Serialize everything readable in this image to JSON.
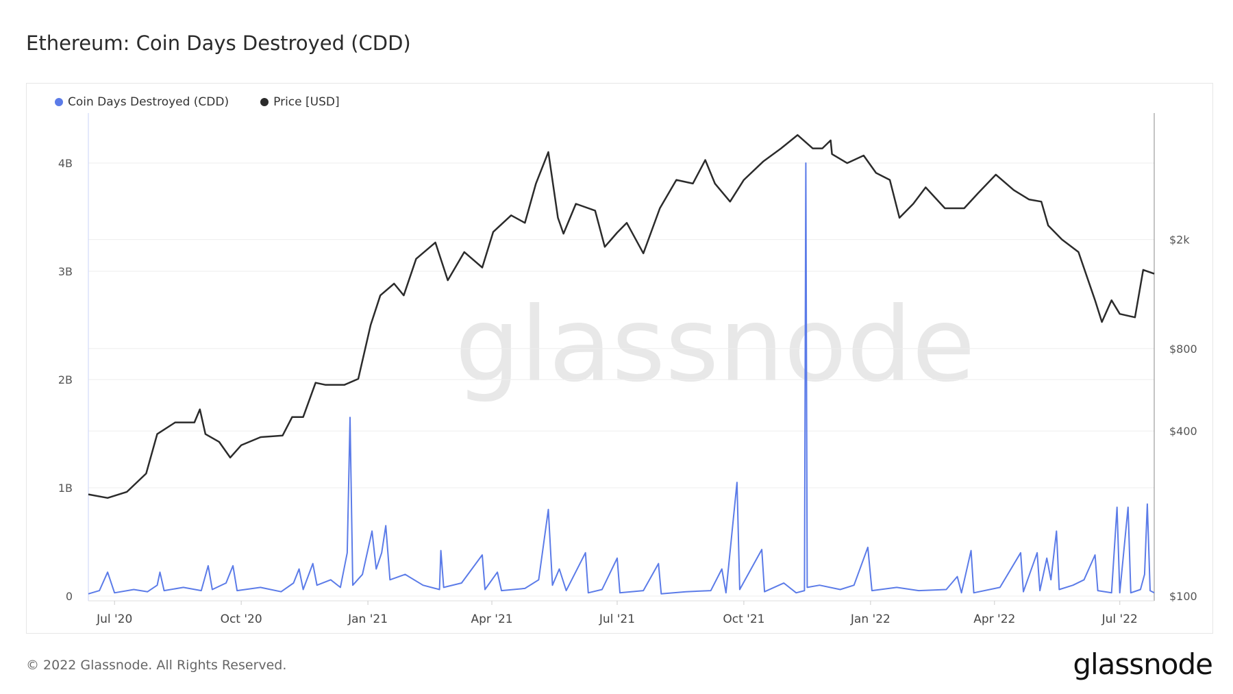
{
  "title": "Ethereum: Coin Days Destroyed (CDD)",
  "footer": "© 2022 Glassnode. All Rights Reserved.",
  "logo": "glassnode",
  "watermark": "glassnode",
  "chart_data": {
    "type": "line",
    "title": "Ethereum: Coin Days Destroyed (CDD)",
    "legend_position": "top-left",
    "grid": true,
    "x_ticks": [
      {
        "date": "2020-07-01",
        "label": "Jul '20"
      },
      {
        "date": "2020-10-01",
        "label": "Oct '20"
      },
      {
        "date": "2021-01-01",
        "label": "Jan '21"
      },
      {
        "date": "2021-04-01",
        "label": "Apr '21"
      },
      {
        "date": "2021-07-01",
        "label": "Jul '21"
      },
      {
        "date": "2021-10-01",
        "label": "Oct '21"
      },
      {
        "date": "2022-01-01",
        "label": "Jan '22"
      },
      {
        "date": "2022-04-01",
        "label": "Apr '22"
      },
      {
        "date": "2022-07-01",
        "label": "Jul '22"
      }
    ],
    "xlim": [
      "2020-06-12",
      "2022-07-26"
    ],
    "left_axis": {
      "scale": "linear",
      "ylim": [
        0,
        4500000000
      ],
      "ticks": [
        {
          "v": 0,
          "label": "0"
        },
        {
          "v": 1000000000,
          "label": "1B"
        },
        {
          "v": 2000000000,
          "label": "2B"
        },
        {
          "v": 3000000000,
          "label": "3B"
        },
        {
          "v": 4000000000,
          "label": "4B"
        }
      ]
    },
    "right_axis": {
      "scale": "log",
      "ticks": [
        {
          "v": 100,
          "label": "$100"
        },
        {
          "v": 400,
          "label": "$400"
        },
        {
          "v": 800,
          "label": "$800"
        },
        {
          "v": 2000,
          "label": "$2k"
        }
      ]
    },
    "series": [
      {
        "name": "Coin Days Destroyed (CDD)",
        "axis": "left",
        "color": "#5b7be8",
        "points": [
          [
            "2020-06-12",
            20000000.0
          ],
          [
            "2020-06-20",
            50000000.0
          ],
          [
            "2020-06-26",
            220000000.0
          ],
          [
            "2020-07-01",
            30000000.0
          ],
          [
            "2020-07-15",
            60000000.0
          ],
          [
            "2020-07-25",
            40000000.0
          ],
          [
            "2020-08-01",
            100000000.0
          ],
          [
            "2020-08-03",
            220000000.0
          ],
          [
            "2020-08-06",
            50000000.0
          ],
          [
            "2020-08-20",
            80000000.0
          ],
          [
            "2020-09-02",
            50000000.0
          ],
          [
            "2020-09-07",
            280000000.0
          ],
          [
            "2020-09-10",
            60000000.0
          ],
          [
            "2020-09-20",
            120000000.0
          ],
          [
            "2020-09-25",
            280000000.0
          ],
          [
            "2020-09-28",
            50000000.0
          ],
          [
            "2020-10-15",
            80000000.0
          ],
          [
            "2020-10-30",
            40000000.0
          ],
          [
            "2020-11-08",
            120000000.0
          ],
          [
            "2020-11-12",
            250000000.0
          ],
          [
            "2020-11-15",
            60000000.0
          ],
          [
            "2020-11-22",
            300000000.0
          ],
          [
            "2020-11-25",
            100000000.0
          ],
          [
            "2020-12-05",
            150000000.0
          ],
          [
            "2020-12-12",
            80000000.0
          ],
          [
            "2020-12-17",
            400000000.0
          ],
          [
            "2020-12-19",
            1650000000.0
          ],
          [
            "2020-12-21",
            100000000.0
          ],
          [
            "2020-12-28",
            200000000.0
          ],
          [
            "2021-01-04",
            600000000.0
          ],
          [
            "2021-01-07",
            250000000.0
          ],
          [
            "2021-01-11",
            400000000.0
          ],
          [
            "2021-01-14",
            650000000.0
          ],
          [
            "2021-01-17",
            150000000.0
          ],
          [
            "2021-01-28",
            200000000.0
          ],
          [
            "2021-02-10",
            100000000.0
          ],
          [
            "2021-02-22",
            60000000.0
          ],
          [
            "2021-02-23",
            420000000.0
          ],
          [
            "2021-02-25",
            80000000.0
          ],
          [
            "2021-03-10",
            120000000.0
          ],
          [
            "2021-03-25",
            380000000.0
          ],
          [
            "2021-03-27",
            60000000.0
          ],
          [
            "2021-04-05",
            220000000.0
          ],
          [
            "2021-04-08",
            50000000.0
          ],
          [
            "2021-04-25",
            70000000.0
          ],
          [
            "2021-05-05",
            150000000.0
          ],
          [
            "2021-05-12",
            800000000.0
          ],
          [
            "2021-05-15",
            100000000.0
          ],
          [
            "2021-05-20",
            250000000.0
          ],
          [
            "2021-05-25",
            50000000.0
          ],
          [
            "2021-06-08",
            400000000.0
          ],
          [
            "2021-06-10",
            30000000.0
          ],
          [
            "2021-06-20",
            60000000.0
          ],
          [
            "2021-07-01",
            350000000.0
          ],
          [
            "2021-07-03",
            30000000.0
          ],
          [
            "2021-07-20",
            50000000.0
          ],
          [
            "2021-07-31",
            300000000.0
          ],
          [
            "2021-08-02",
            20000000.0
          ],
          [
            "2021-08-20",
            40000000.0
          ],
          [
            "2021-09-07",
            50000000.0
          ],
          [
            "2021-09-15",
            250000000.0
          ],
          [
            "2021-09-18",
            30000000.0
          ],
          [
            "2021-09-26",
            1050000000.0
          ],
          [
            "2021-09-28",
            60000000.0
          ],
          [
            "2021-10-14",
            430000000.0
          ],
          [
            "2021-10-16",
            40000000.0
          ],
          [
            "2021-10-30",
            120000000.0
          ],
          [
            "2021-11-08",
            30000000.0
          ],
          [
            "2021-11-14",
            50000000.0
          ],
          [
            "2021-11-15",
            4000000000.0
          ],
          [
            "2021-11-16",
            80000000.0
          ],
          [
            "2021-11-25",
            100000000.0
          ],
          [
            "2021-12-10",
            60000000.0
          ],
          [
            "2021-12-20",
            100000000.0
          ],
          [
            "2021-12-30",
            450000000.0
          ],
          [
            "2022-01-02",
            50000000.0
          ],
          [
            "2022-01-20",
            80000000.0
          ],
          [
            "2022-02-05",
            50000000.0
          ],
          [
            "2022-02-25",
            60000000.0
          ],
          [
            "2022-03-05",
            180000000.0
          ],
          [
            "2022-03-08",
            30000000.0
          ],
          [
            "2022-03-15",
            420000000.0
          ],
          [
            "2022-03-17",
            30000000.0
          ],
          [
            "2022-04-05",
            80000000.0
          ],
          [
            "2022-04-20",
            400000000.0
          ],
          [
            "2022-04-22",
            40000000.0
          ],
          [
            "2022-05-02",
            400000000.0
          ],
          [
            "2022-05-04",
            50000000.0
          ],
          [
            "2022-05-09",
            350000000.0
          ],
          [
            "2022-05-12",
            150000000.0
          ],
          [
            "2022-05-16",
            600000000.0
          ],
          [
            "2022-05-18",
            60000000.0
          ],
          [
            "2022-05-28",
            100000000.0
          ],
          [
            "2022-06-05",
            150000000.0
          ],
          [
            "2022-06-13",
            380000000.0
          ],
          [
            "2022-06-15",
            50000000.0
          ],
          [
            "2022-06-25",
            30000000.0
          ],
          [
            "2022-06-29",
            820000000.0
          ],
          [
            "2022-07-01",
            30000000.0
          ],
          [
            "2022-07-07",
            820000000.0
          ],
          [
            "2022-07-09",
            30000000.0
          ],
          [
            "2022-07-16",
            60000000.0
          ],
          [
            "2022-07-19",
            200000000.0
          ],
          [
            "2022-07-21",
            850000000.0
          ],
          [
            "2022-07-23",
            50000000.0
          ],
          [
            "2022-07-26",
            30000000.0
          ]
        ]
      },
      {
        "name": "Price [USD]",
        "axis": "right",
        "color": "#2b2b2b",
        "points": [
          [
            "2020-06-12",
            235
          ],
          [
            "2020-06-26",
            228
          ],
          [
            "2020-07-10",
            240
          ],
          [
            "2020-07-24",
            280
          ],
          [
            "2020-08-01",
            390
          ],
          [
            "2020-08-14",
            430
          ],
          [
            "2020-08-28",
            430
          ],
          [
            "2020-09-01",
            480
          ],
          [
            "2020-09-05",
            390
          ],
          [
            "2020-09-15",
            365
          ],
          [
            "2020-09-23",
            320
          ],
          [
            "2020-10-01",
            355
          ],
          [
            "2020-10-15",
            380
          ],
          [
            "2020-10-31",
            385
          ],
          [
            "2020-11-07",
            450
          ],
          [
            "2020-11-15",
            450
          ],
          [
            "2020-11-24",
            600
          ],
          [
            "2020-12-01",
            590
          ],
          [
            "2020-12-15",
            590
          ],
          [
            "2020-12-25",
            620
          ],
          [
            "2021-01-03",
            975
          ],
          [
            "2021-01-10",
            1250
          ],
          [
            "2021-01-20",
            1380
          ],
          [
            "2021-01-27",
            1250
          ],
          [
            "2021-02-05",
            1700
          ],
          [
            "2021-02-19",
            1950
          ],
          [
            "2021-02-28",
            1420
          ],
          [
            "2021-03-12",
            1800
          ],
          [
            "2021-03-25",
            1580
          ],
          [
            "2021-04-02",
            2130
          ],
          [
            "2021-04-15",
            2450
          ],
          [
            "2021-04-25",
            2300
          ],
          [
            "2021-05-03",
            3200
          ],
          [
            "2021-05-12",
            4170
          ],
          [
            "2021-05-19",
            2400
          ],
          [
            "2021-05-23",
            2100
          ],
          [
            "2021-06-01",
            2700
          ],
          [
            "2021-06-15",
            2550
          ],
          [
            "2021-06-22",
            1880
          ],
          [
            "2021-07-01",
            2120
          ],
          [
            "2021-07-08",
            2300
          ],
          [
            "2021-07-20",
            1780
          ],
          [
            "2021-08-01",
            2600
          ],
          [
            "2021-08-13",
            3300
          ],
          [
            "2021-08-25",
            3200
          ],
          [
            "2021-09-03",
            3900
          ],
          [
            "2021-09-10",
            3200
          ],
          [
            "2021-09-21",
            2750
          ],
          [
            "2021-10-01",
            3300
          ],
          [
            "2021-10-15",
            3850
          ],
          [
            "2021-10-28",
            4300
          ],
          [
            "2021-11-09",
            4810
          ],
          [
            "2021-11-20",
            4300
          ],
          [
            "2021-11-27",
            4300
          ],
          [
            "2021-12-03",
            4600
          ],
          [
            "2021-12-04",
            4100
          ],
          [
            "2021-12-15",
            3800
          ],
          [
            "2021-12-27",
            4050
          ],
          [
            "2022-01-05",
            3500
          ],
          [
            "2022-01-15",
            3300
          ],
          [
            "2022-01-22",
            2400
          ],
          [
            "2022-02-01",
            2700
          ],
          [
            "2022-02-10",
            3100
          ],
          [
            "2022-02-24",
            2600
          ],
          [
            "2022-03-10",
            2600
          ],
          [
            "2022-03-20",
            2950
          ],
          [
            "2022-04-02",
            3450
          ],
          [
            "2022-04-15",
            3030
          ],
          [
            "2022-04-26",
            2800
          ],
          [
            "2022-05-05",
            2750
          ],
          [
            "2022-05-10",
            2250
          ],
          [
            "2022-05-20",
            2000
          ],
          [
            "2022-06-01",
            1800
          ],
          [
            "2022-06-13",
            1200
          ],
          [
            "2022-06-18",
            1000
          ],
          [
            "2022-06-25",
            1200
          ],
          [
            "2022-07-01",
            1070
          ],
          [
            "2022-07-12",
            1040
          ],
          [
            "2022-07-18",
            1550
          ],
          [
            "2022-07-26",
            1500
          ]
        ]
      }
    ]
  }
}
